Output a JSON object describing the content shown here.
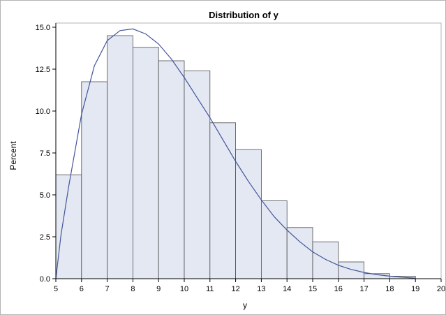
{
  "chart_data": {
    "type": "bar",
    "title": "Distribution of y",
    "xlabel": "y",
    "ylabel": "Percent",
    "xlim": [
      5,
      20
    ],
    "ylim": [
      0,
      15
    ],
    "x_ticks": [
      "5",
      "6",
      "7",
      "8",
      "9",
      "10",
      "11",
      "12",
      "13",
      "14",
      "15",
      "16",
      "17",
      "18",
      "19",
      "20"
    ],
    "y_ticks": [
      "0.0",
      "2.5",
      "5.0",
      "7.5",
      "10.0",
      "12.5",
      "15.0"
    ],
    "bins": [
      {
        "start": 5,
        "end": 6,
        "value": 6.2
      },
      {
        "start": 6,
        "end": 7,
        "value": 11.75
      },
      {
        "start": 7,
        "end": 8,
        "value": 14.5
      },
      {
        "start": 8,
        "end": 9,
        "value": 13.8
      },
      {
        "start": 9,
        "end": 10,
        "value": 13.0
      },
      {
        "start": 10,
        "end": 11,
        "value": 12.4
      },
      {
        "start": 11,
        "end": 12,
        "value": 9.3
      },
      {
        "start": 12,
        "end": 13,
        "value": 7.7
      },
      {
        "start": 13,
        "end": 14,
        "value": 4.65
      },
      {
        "start": 14,
        "end": 15,
        "value": 3.05
      },
      {
        "start": 15,
        "end": 16,
        "value": 2.2
      },
      {
        "start": 16,
        "end": 17,
        "value": 1.0
      },
      {
        "start": 17,
        "end": 18,
        "value": 0.3
      },
      {
        "start": 18,
        "end": 19,
        "value": 0.15
      }
    ],
    "density_curve": {
      "x": [
        5,
        5.2,
        5.5,
        6,
        6.5,
        7,
        7.5,
        8,
        8.5,
        9,
        9.5,
        10,
        10.5,
        11,
        11.5,
        12,
        12.5,
        13,
        13.5,
        14,
        14.5,
        15,
        15.5,
        16,
        16.5,
        17,
        17.5,
        18,
        18.5,
        19
      ],
      "y": [
        0.0,
        2.6,
        5.5,
        9.8,
        12.7,
        14.2,
        14.8,
        14.9,
        14.6,
        14.0,
        13.1,
        12.0,
        10.8,
        9.6,
        8.3,
        7.0,
        5.8,
        4.7,
        3.7,
        2.9,
        2.2,
        1.6,
        1.15,
        0.8,
        0.55,
        0.37,
        0.24,
        0.15,
        0.08,
        0.03
      ]
    },
    "grid": false,
    "colors": {
      "bar_fill": "#e3e8f2",
      "bar_stroke": "#4d4d4d",
      "curve": "#44559a",
      "axis": "#000000",
      "plot_border": "#b4b4b4"
    }
  }
}
